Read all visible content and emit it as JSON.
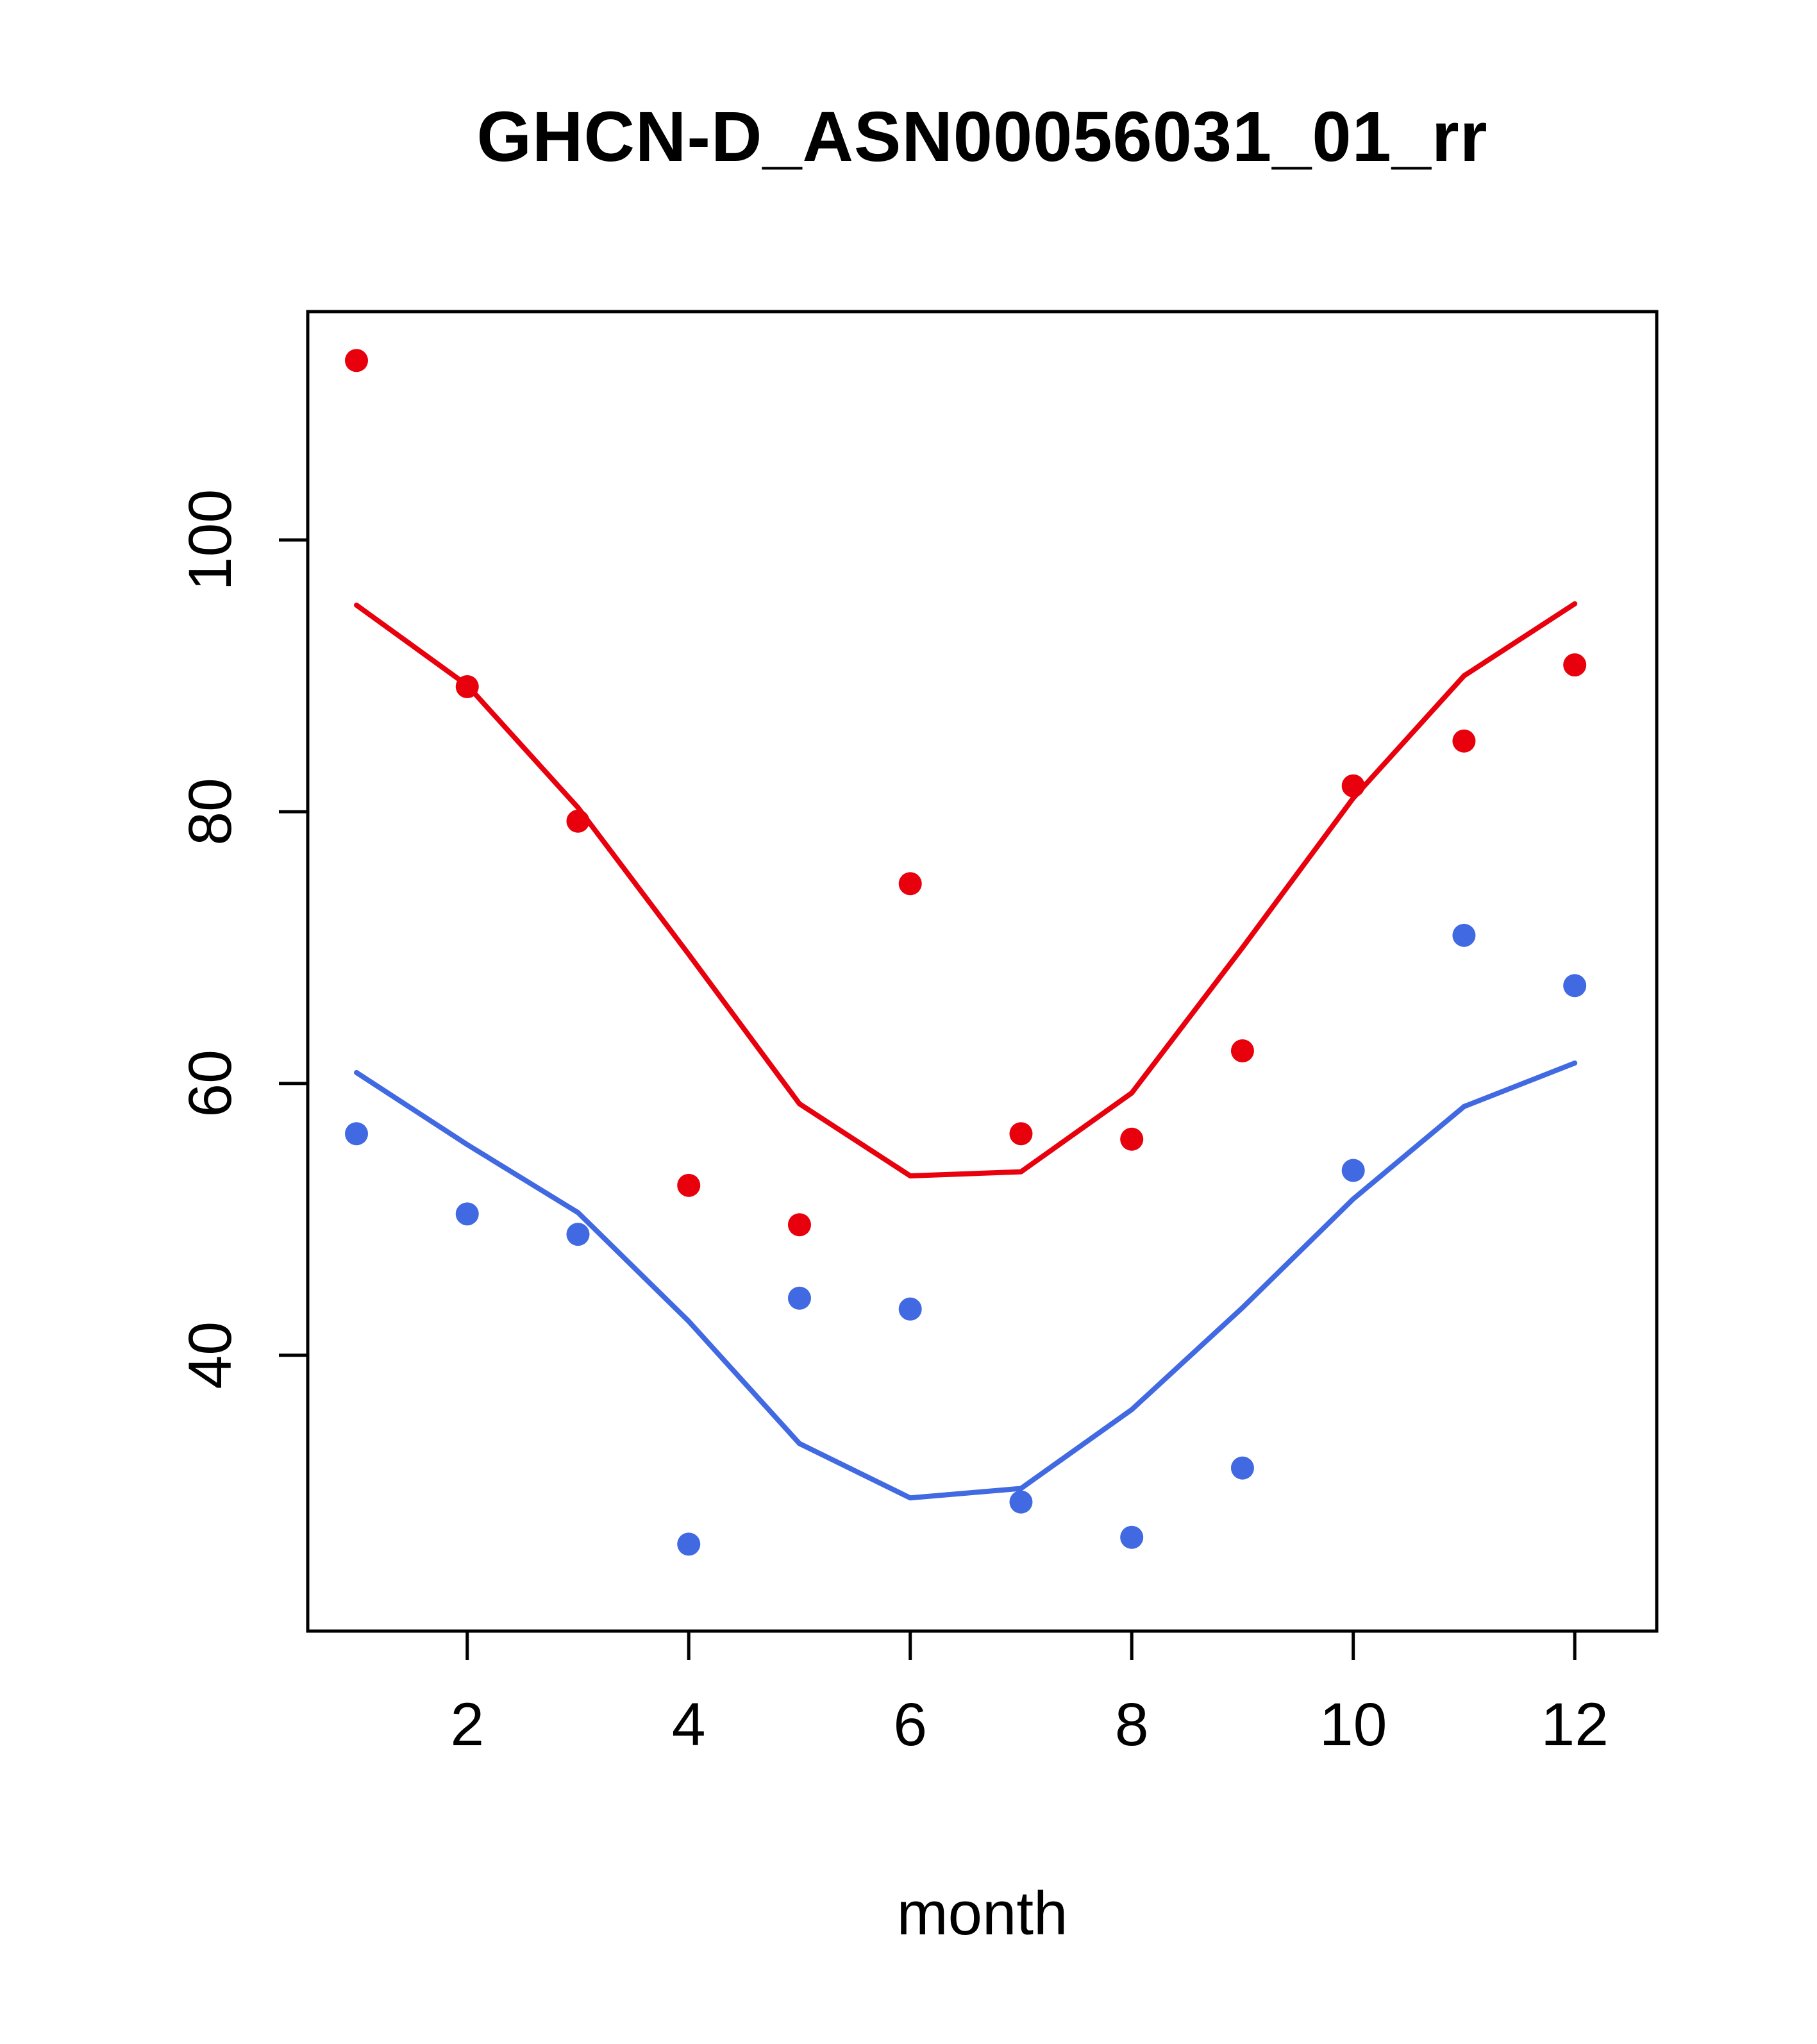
{
  "title": "GHCN-D_ASN00056031_01_rr",
  "colors": {
    "red_series": "#e8000d",
    "blue_series": "#4169e1",
    "axis": "#000000",
    "background": "#ffffff"
  },
  "chart_data": {
    "type": "scatter",
    "title": "GHCN-D_ASN00056031_01_rr",
    "xlabel": "month",
    "ylabel": "",
    "x": [
      1,
      2,
      3,
      4,
      5,
      6,
      7,
      8,
      9,
      10,
      11,
      12
    ],
    "xlim": [
      0.56,
      12.74
    ],
    "ylim": [
      19.7,
      116.8
    ],
    "xticks": [
      2,
      4,
      6,
      8,
      10,
      12
    ],
    "yticks": [
      40,
      60,
      80,
      100
    ],
    "grid": false,
    "legend": "none",
    "series": [
      {
        "name": "red-points",
        "type": "points",
        "color": "#e8000d",
        "values": [
          113.2,
          89.2,
          79.3,
          52.5,
          49.6,
          74.7,
          56.3,
          55.9,
          62.4,
          81.9,
          85.2,
          90.8
        ]
      },
      {
        "name": "red-line",
        "type": "line",
        "color": "#e8000d",
        "values": [
          95.2,
          89.3,
          80.3,
          69.5,
          58.5,
          53.2,
          53.5,
          59.3,
          70.0,
          81.0,
          90.0,
          95.3
        ]
      },
      {
        "name": "blue-points",
        "type": "points",
        "color": "#4169e1",
        "values": [
          56.3,
          50.4,
          48.9,
          26.1,
          44.2,
          43.4,
          29.2,
          26.6,
          31.7,
          53.6,
          70.9,
          67.2
        ]
      },
      {
        "name": "blue-line",
        "type": "line",
        "color": "#4169e1",
        "values": [
          60.8,
          55.5,
          50.5,
          42.5,
          33.5,
          29.5,
          30.2,
          36.0,
          43.5,
          51.5,
          58.3,
          61.5
        ]
      }
    ]
  }
}
